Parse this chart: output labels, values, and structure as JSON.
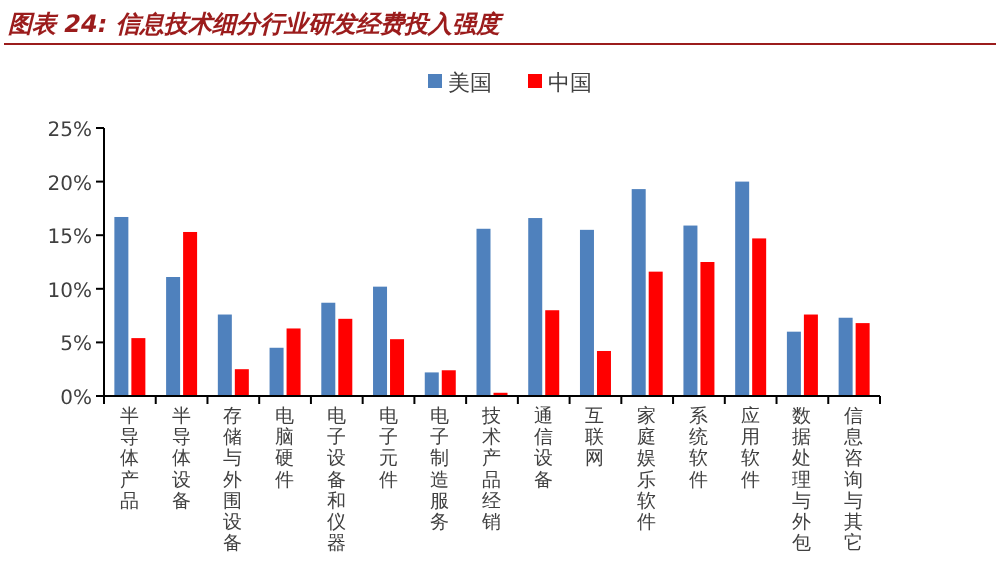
{
  "chart_data": {
    "type": "bar",
    "title": "图表 24: 信息技术细分行业研发经费投入强度",
    "categories": [
      "半导体产品",
      "半导体设备",
      "存储与外围设备",
      "电脑硬件",
      "电子设备和仪器",
      "电子元件",
      "电子制造服务",
      "技术产品经销",
      "通信设备",
      "互联网",
      "家庭娱乐软件",
      "系统软件",
      "应用软件",
      "数据处理与外包",
      "信息咨询与其它"
    ],
    "series": [
      {
        "name": "美国",
        "color": "#4f81bd",
        "values": [
          16.7,
          11.1,
          7.6,
          4.5,
          8.7,
          10.2,
          2.2,
          15.6,
          16.6,
          15.5,
          19.3,
          15.9,
          20.0,
          6.0,
          7.3
        ]
      },
      {
        "name": "中国",
        "color": "#ff0000",
        "values": [
          5.4,
          15.3,
          2.5,
          6.3,
          7.2,
          5.3,
          2.4,
          0.3,
          8.0,
          4.2,
          11.6,
          12.5,
          14.7,
          7.6,
          6.8
        ]
      }
    ],
    "ylim": [
      0,
      25
    ],
    "yticks": [
      {
        "value": 0,
        "label": "0%"
      },
      {
        "value": 5,
        "label": "5%"
      },
      {
        "value": 10,
        "label": "10%"
      },
      {
        "value": 15,
        "label": "15%"
      },
      {
        "value": 20,
        "label": "20%"
      },
      {
        "value": 25,
        "label": "25%"
      }
    ],
    "grid": false,
    "legend": "top"
  }
}
